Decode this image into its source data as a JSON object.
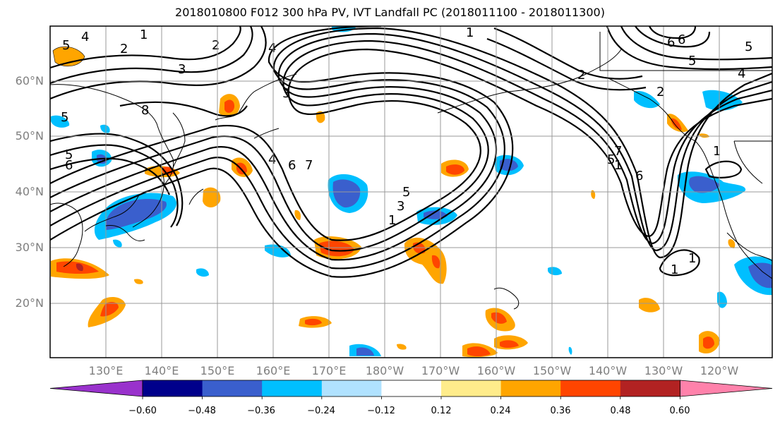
{
  "title": "2018010800 F012 300 hPa PV, IVT Landfall PC (2018011100 - 2018011300)",
  "map": {
    "lat_labels": [
      "60°N",
      "50°N",
      "40°N",
      "30°N",
      "20°N"
    ],
    "lon_labels": [
      "130°E",
      "140°E",
      "150°E",
      "160°E",
      "170°E",
      "180°W",
      "170°W",
      "160°W",
      "150°W",
      "140°W",
      "130°W",
      "120°W"
    ],
    "contour_labels": [
      "5",
      "4",
      "2",
      "2",
      "3",
      "4",
      "8",
      "1",
      "6",
      "5",
      "3",
      "4",
      "5",
      "2",
      "2",
      "1",
      "5",
      "5",
      "6",
      "4",
      "6",
      "7",
      "7",
      "6",
      "5",
      "3",
      "1",
      "1",
      "1",
      "6",
      "1",
      "5",
      "1"
    ],
    "gridline_color": "#999999"
  },
  "colorbar": {
    "ticks": [
      "−0.60",
      "−0.48",
      "−0.36",
      "−0.24",
      "−0.12",
      "0.12",
      "0.24",
      "0.36",
      "0.48",
      "0.60"
    ],
    "colors": [
      "#9932cc",
      "#00008b",
      "#3a5fcd",
      "#00bfff",
      "#b0e2ff",
      "#ffffff",
      "#ffec8b",
      "#ffa500",
      "#ff4500",
      "#b22222",
      "#ff82ab"
    ]
  }
}
